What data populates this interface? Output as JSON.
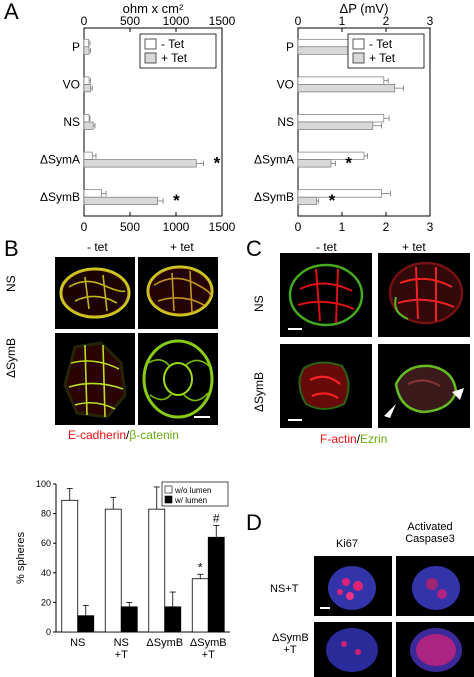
{
  "panels": {
    "A": "A",
    "B": "B",
    "C": "C",
    "D": "D"
  },
  "chart_data": [
    {
      "type": "bar",
      "orientation": "horizontal",
      "title": "ohm x cm²",
      "categories": [
        "P",
        "VO",
        "NS",
        "ΔSymA",
        "ΔSymB"
      ],
      "series": [
        {
          "name": "- Tet",
          "values": [
            50,
            55,
            55,
            90,
            190
          ],
          "errors": [
            15,
            15,
            10,
            40,
            50
          ],
          "color": "#ffffff"
        },
        {
          "name": "+ Tet",
          "values": [
            55,
            70,
            100,
            1220,
            800
          ],
          "errors": [
            15,
            20,
            20,
            80,
            60
          ],
          "color": "#d9d9d9"
        }
      ],
      "xlim": [
        0,
        1500
      ],
      "xticks": [
        "0",
        "500",
        "1000",
        "1500"
      ],
      "significance": [
        "",
        "",
        "",
        "*",
        "*"
      ],
      "legend": "top-right"
    },
    {
      "type": "bar",
      "orientation": "horizontal",
      "title": "ΔP (mV)",
      "categories": [
        "P",
        "VO",
        "NS",
        "ΔSymA",
        "ΔSymB"
      ],
      "series": [
        {
          "name": "- Tet",
          "values": [
            1.65,
            1.95,
            1.95,
            1.5,
            1.9
          ],
          "errors": [
            0.1,
            0.1,
            0.12,
            0.08,
            0.2
          ],
          "color": "#ffffff"
        },
        {
          "name": "+ Tet",
          "values": [
            1.65,
            2.2,
            1.7,
            0.75,
            0.42
          ],
          "errors": [
            0.1,
            0.2,
            0.2,
            0.1,
            0.05
          ],
          "color": "#d9d9d9"
        }
      ],
      "xlim": [
        0,
        3
      ],
      "xticks": [
        "0",
        "1",
        "2",
        "3"
      ],
      "significance": [
        "",
        "",
        "",
        "*",
        "*"
      ],
      "legend": "top-right"
    },
    {
      "type": "bar",
      "ylabel": "% spheres",
      "categories": [
        "NS",
        "NS\n+T",
        "ΔSymB",
        "ΔSymB\n+T"
      ],
      "series": [
        {
          "name": "w/o lumen",
          "values": [
            89,
            83,
            83,
            36
          ],
          "errors": [
            8,
            8,
            15,
            3
          ],
          "color": "#ffffff"
        },
        {
          "name": "w/ lumen",
          "values": [
            11,
            17,
            17,
            64
          ],
          "errors": [
            7,
            3,
            10,
            8
          ],
          "color": "#000000"
        }
      ],
      "ylim": [
        0,
        100
      ],
      "yticks": [
        "0",
        "20",
        "40",
        "60",
        "80",
        "100"
      ],
      "annotations": [
        {
          "category": "ΔSymB\n+T",
          "series": "w/o lumen",
          "text": "*"
        },
        {
          "category": "ΔSymB\n+T",
          "series": "w/ lumen",
          "text": "#"
        }
      ],
      "legend": "top-right"
    }
  ],
  "B": {
    "col1": "- tet",
    "col2": "+ tet",
    "row1": "NS",
    "row2": "ΔSymB",
    "caption_red": "E-cadherin",
    "caption_sep": "/",
    "caption_green": "β-catenin"
  },
  "C": {
    "col1": "- tet",
    "col2": "+ tet",
    "row1": "NS",
    "row2": "ΔSymB",
    "caption_red": "F-actin",
    "caption_sep": "/",
    "caption_green": "Ezrin"
  },
  "D": {
    "col1": "Ki67",
    "col2_line1": "Activated",
    "col2_line2": "Caspase3",
    "row1": "NS+T",
    "row2_line1": "ΔSymB",
    "row2_line2": "+T"
  },
  "colors": {
    "red_stain": "#ee1111",
    "green_stain": "#77cc11",
    "yellow_overlap": "#dddd22",
    "blue_stain": "#3333cc",
    "pink_stain": "#dd2277",
    "ezrin_label": "#66aa11"
  }
}
